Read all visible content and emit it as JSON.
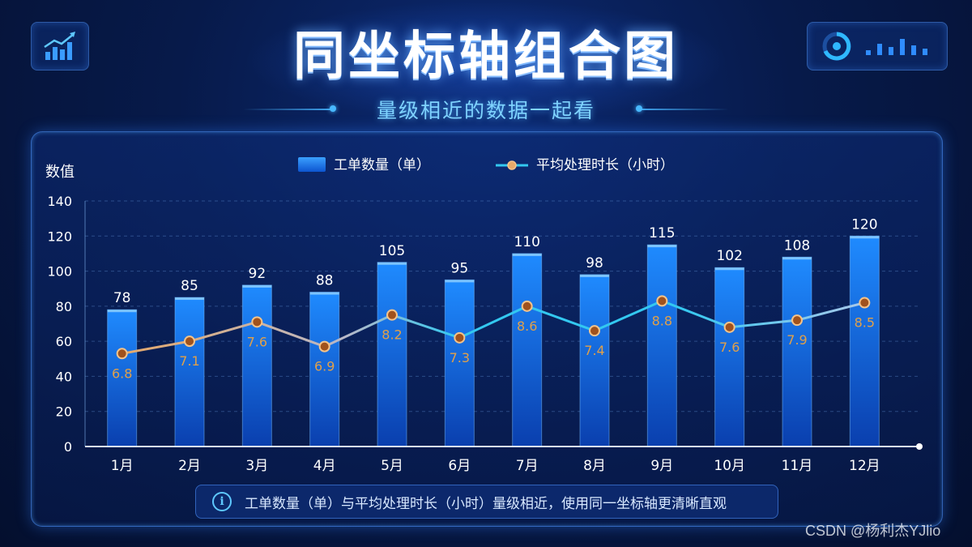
{
  "title": "同坐标轴组合图",
  "subtitle": "量级相近的数据一起看",
  "note": "工单数量（单）与平均处理时长（小时）量级相近，使用同一坐标轴更清晰直观",
  "watermark": "CSDN @杨利杰YJlio",
  "colors": {
    "bar": "#1a7dff",
    "line_start": "#e6a96a",
    "line_mid": "#33c8f0",
    "point_fill": "#a0521d",
    "point_stroke": "#f4c38a",
    "line_label": "#e0a04a"
  },
  "chart_data": {
    "type": "bar",
    "ylabel": "数值",
    "ylim": [
      0,
      140
    ],
    "yticks": [
      "0",
      "20",
      "40",
      "60",
      "80",
      "100",
      "120",
      "140"
    ],
    "categories": [
      "1月",
      "2月",
      "3月",
      "4月",
      "5月",
      "6月",
      "7月",
      "8月",
      "9月",
      "10月",
      "11月",
      "12月"
    ],
    "legend_position": "top-center",
    "grid": true,
    "series": [
      {
        "name": "工单数量（单）",
        "type": "bar",
        "values": [
          78,
          85,
          92,
          88,
          105,
          95,
          110,
          98,
          115,
          102,
          108,
          120
        ],
        "labels": [
          "78",
          "85",
          "92",
          "88",
          "105",
          "95",
          "110",
          "98",
          "115",
          "102",
          "108",
          "120"
        ]
      },
      {
        "name": "平均处理时长（小时）",
        "type": "line",
        "values": [
          6.8,
          7.1,
          7.6,
          6.9,
          8.2,
          7.3,
          8.6,
          7.4,
          8.8,
          7.6,
          7.9,
          8.5
        ],
        "labels": [
          "6.8",
          "7.1",
          "7.6",
          "6.9",
          "8.2",
          "7.3",
          "8.6",
          "7.4",
          "8.8",
          "7.6",
          "7.9",
          "8.5"
        ],
        "plotted_on_axis": [
          53,
          60,
          71,
          57,
          75,
          62,
          80,
          66,
          83,
          68,
          72,
          82
        ]
      }
    ]
  }
}
